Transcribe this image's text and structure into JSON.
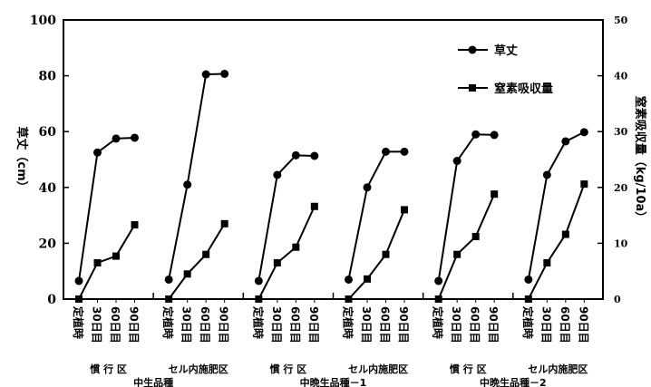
{
  "chart_data": {
    "type": "line",
    "categories": [
      "定植時",
      "30日目",
      "60日目",
      "90日目"
    ],
    "groups": [
      {
        "name": "慣 行 区",
        "series": "中生品種"
      },
      {
        "name": "セル内施肥区",
        "series": "中生品種"
      },
      {
        "name": "慣 行 区",
        "series": "中晩生品種－1"
      },
      {
        "name": "セル内施肥区",
        "series": "中晩生品種－1"
      },
      {
        "name": "慣 行 区",
        "series": "中晩生品種－2"
      },
      {
        "name": "セル内施肥区",
        "series": "中晩生品種－2"
      }
    ],
    "varieties": [
      "中生品種",
      "中晩生品種－1",
      "中晩生品種－2"
    ],
    "series": [
      {
        "name": "草丈",
        "axis": "left",
        "marker": "circle",
        "values": [
          [
            6.5,
            52.5,
            57.5,
            57.8
          ],
          [
            7,
            41,
            80.5,
            80.7
          ],
          [
            6.5,
            44.5,
            51.5,
            51.3
          ],
          [
            7,
            40,
            52.8,
            52.8
          ],
          [
            6.5,
            49.5,
            59,
            58.8
          ],
          [
            7,
            44.5,
            56.5,
            59.8
          ]
        ]
      },
      {
        "name": "窒素吸収量",
        "axis": "right",
        "marker": "square",
        "values": [
          [
            0,
            6.5,
            7.7,
            13.3
          ],
          [
            0,
            4.5,
            8,
            13.5
          ],
          [
            0,
            6.5,
            9.3,
            16.6
          ],
          [
            0,
            3.6,
            8,
            16
          ],
          [
            0,
            8,
            11.2,
            18.8
          ],
          [
            0,
            6.5,
            11.6,
            20.6
          ]
        ]
      }
    ],
    "ylabel": "草丈（cm）",
    "y2label": "窒素吸収量（kg/10a）",
    "ylim": [
      0,
      100
    ],
    "y2lim": [
      0,
      50
    ],
    "yticks": [
      "0",
      "20",
      "40",
      "60",
      "80",
      "100"
    ],
    "y2ticks": [
      "0",
      "10",
      "20",
      "30",
      "40",
      "50"
    ],
    "legend_position": "top-right",
    "grid": false
  }
}
